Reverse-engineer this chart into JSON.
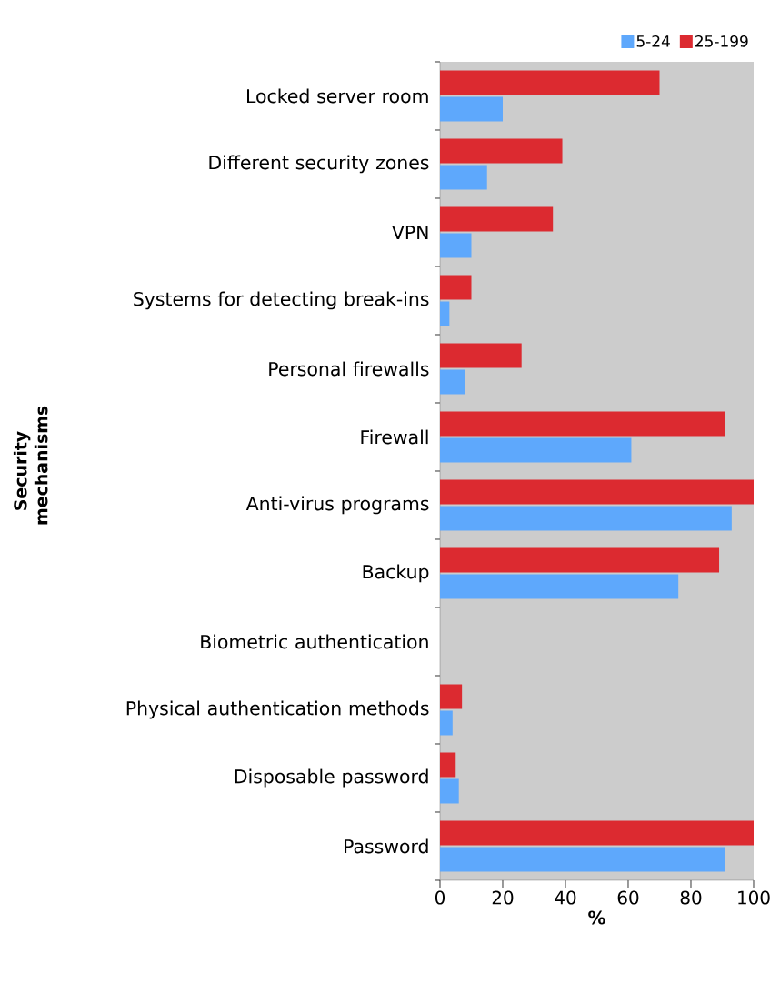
{
  "chart_data": {
    "type": "bar",
    "orientation": "horizontal",
    "xlabel": "%",
    "ylabel": "Security mechanisms",
    "categories": [
      "Locked server room",
      "Different security zones",
      "VPN",
      "Systems for detecting break-ins",
      "Personal firewalls",
      "Firewall",
      "Anti-virus programs",
      "Backup",
      "Biometric authentication",
      "Physical authentication methods",
      "Disposable password",
      "Password"
    ],
    "series": [
      {
        "name": "5-24",
        "color": "#5ea8fc",
        "values": [
          20,
          15,
          10,
          3,
          8,
          61,
          93,
          76,
          0,
          4,
          6,
          91
        ]
      },
      {
        "name": "25-199",
        "color": "#dc2a30",
        "values": [
          70,
          39,
          36,
          10,
          26,
          91,
          100,
          89,
          0,
          7,
          5,
          100
        ]
      }
    ],
    "xlim": [
      0,
      100
    ],
    "xticks": [
      0,
      20,
      40,
      60,
      80,
      100
    ],
    "legend": "top right"
  }
}
